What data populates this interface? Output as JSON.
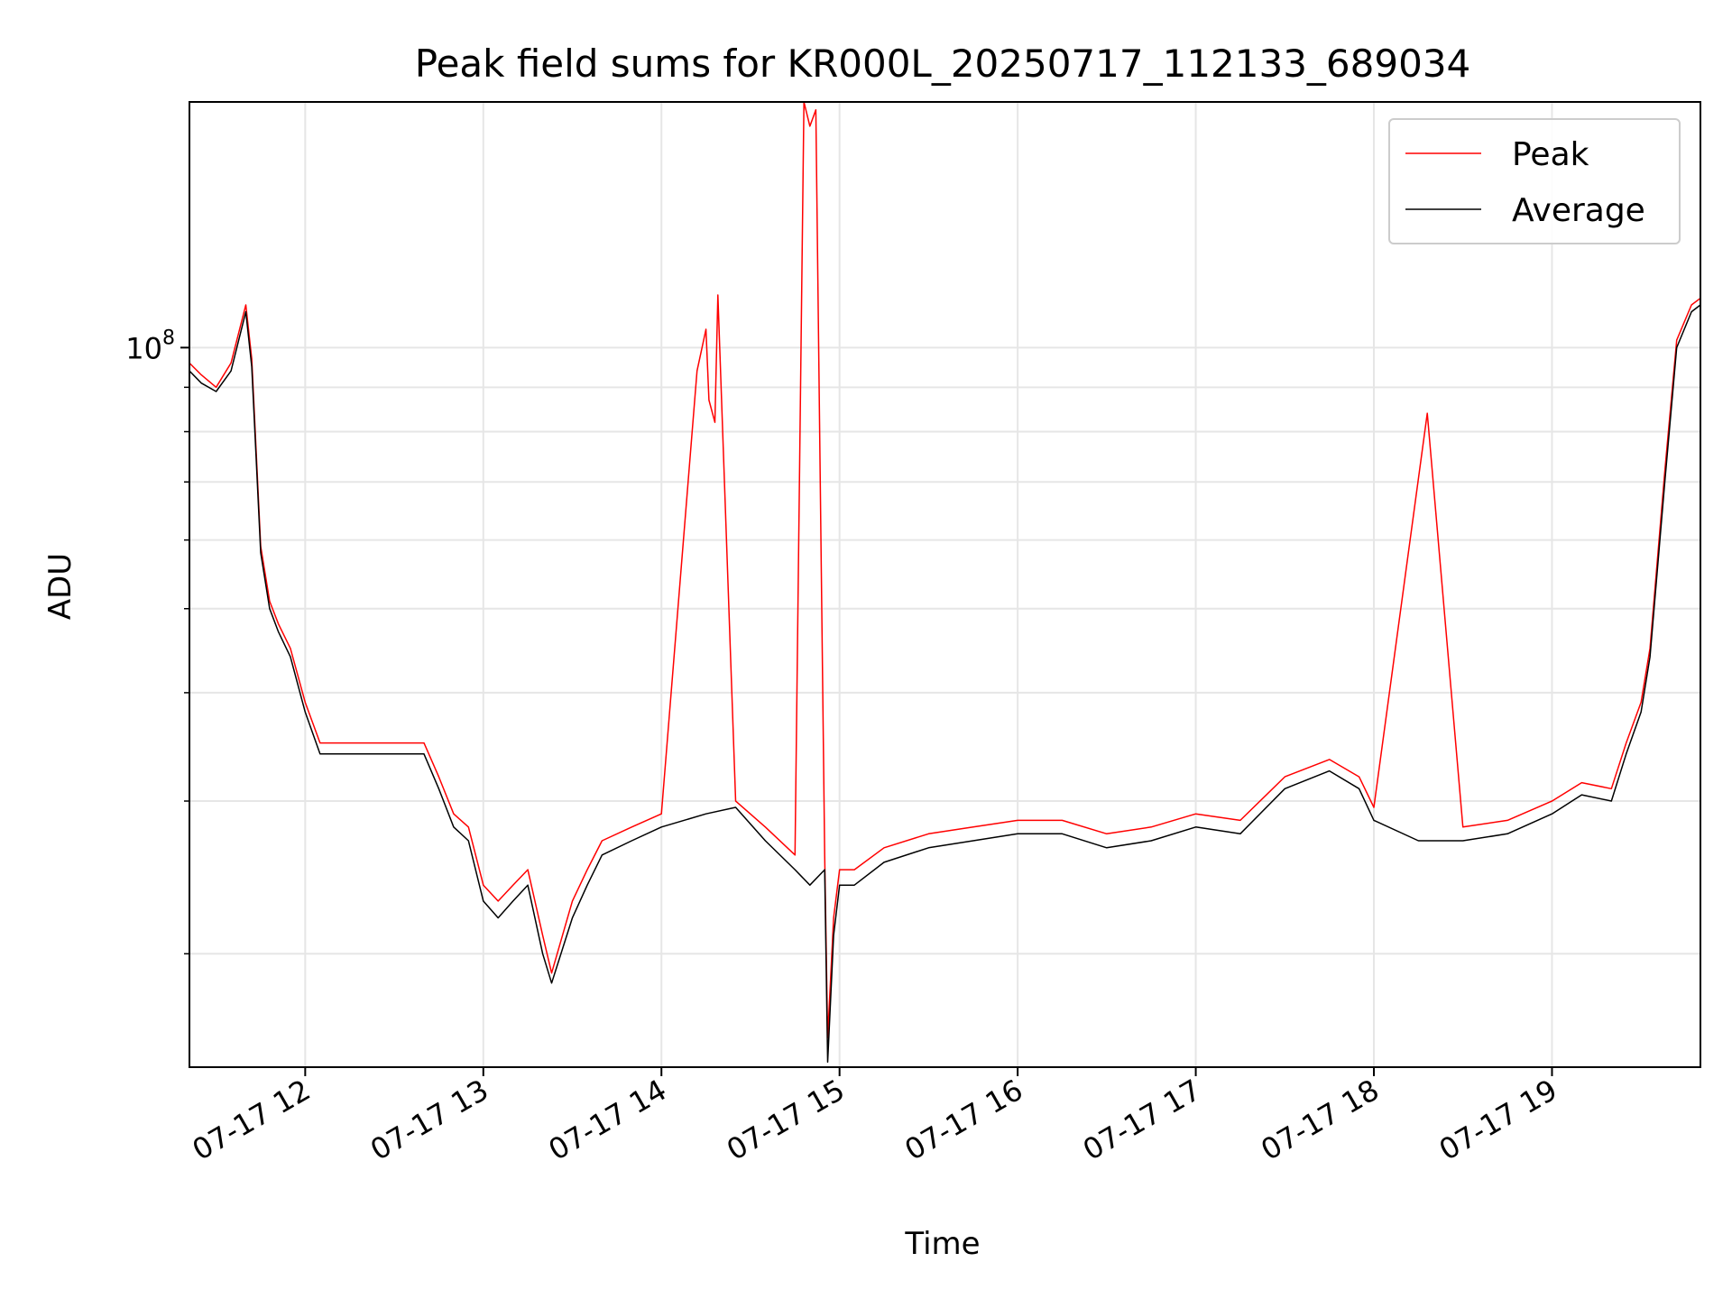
{
  "chart_data": {
    "type": "line",
    "title": "Peak field sums for KR000L_20250717_112133_689034",
    "xlabel": "Time",
    "ylabel": "ADU",
    "y_scale": "log",
    "ylim": [
      14800000,
      192000000
    ],
    "xlim": [
      "2025-07-17 11:21",
      "2025-07-17 19:50"
    ],
    "x_ticks": [
      "07-17 12",
      "07-17 13",
      "07-17 14",
      "07-17 15",
      "07-17 16",
      "07-17 17",
      "07-17 18",
      "07-17 19"
    ],
    "y_major_tick_labels": [
      {
        "base": "10",
        "exp": "8",
        "value": 100000000
      }
    ],
    "grid": true,
    "legend": {
      "position": "top-right",
      "entries": [
        "Peak",
        "Average"
      ]
    },
    "colors": {
      "Peak": "#ff0000",
      "Average": "#000000"
    },
    "series": [
      {
        "name": "Average",
        "x": [
          "07-17 11:21",
          "07-17 11:25",
          "07-17 11:30",
          "07-17 11:35",
          "07-17 11:40",
          "07-17 11:42",
          "07-17 11:45",
          "07-17 11:48",
          "07-17 11:51",
          "07-17 11:55",
          "07-17 12:00",
          "07-17 12:05",
          "07-17 12:15",
          "07-17 12:30",
          "07-17 12:40",
          "07-17 12:45",
          "07-17 12:50",
          "07-17 12:55",
          "07-17 13:00",
          "07-17 13:05",
          "07-17 13:10",
          "07-17 13:15",
          "07-17 13:20",
          "07-17 13:23",
          "07-17 13:30",
          "07-17 13:35",
          "07-17 13:40",
          "07-17 13:50",
          "07-17 14:00",
          "07-17 14:15",
          "07-17 14:25",
          "07-17 14:35",
          "07-17 14:45",
          "07-17 14:50",
          "07-17 14:55",
          "07-17 14:56",
          "07-17 14:58",
          "07-17 15:00",
          "07-17 15:05",
          "07-17 15:15",
          "07-17 15:30",
          "07-17 15:45",
          "07-17 16:00",
          "07-17 16:15",
          "07-17 16:30",
          "07-17 16:45",
          "07-17 17:00",
          "07-17 17:15",
          "07-17 17:30",
          "07-17 17:45",
          "07-17 17:55",
          "07-17 18:00",
          "07-17 18:15",
          "07-17 18:30",
          "07-17 18:45",
          "07-17 19:00",
          "07-17 19:10",
          "07-17 19:20",
          "07-17 19:25",
          "07-17 19:30",
          "07-17 19:33",
          "07-17 19:38",
          "07-17 19:42",
          "07-17 19:47",
          "07-17 19:50"
        ],
        "values": [
          94000000,
          91000000,
          89000000,
          94000000,
          110000000,
          95000000,
          58000000,
          50000000,
          47000000,
          44000000,
          38000000,
          34000000,
          34000000,
          34000000,
          34000000,
          31000000,
          28000000,
          27000000,
          23000000,
          22000000,
          23000000,
          24000000,
          20000000,
          18500000,
          22000000,
          24000000,
          26000000,
          27000000,
          28000000,
          29000000,
          29500000,
          27000000,
          25000000,
          24000000,
          25000000,
          15000000,
          21000000,
          24000000,
          24000000,
          25500000,
          26500000,
          27000000,
          27500000,
          27500000,
          26500000,
          27000000,
          28000000,
          27500000,
          31000000,
          32500000,
          31000000,
          28500000,
          27000000,
          27000000,
          27500000,
          29000000,
          30500000,
          30000000,
          34000000,
          38000000,
          44000000,
          70000000,
          100000000,
          110000000,
          112000000
        ]
      },
      {
        "name": "Peak",
        "x": [
          "07-17 11:21",
          "07-17 11:25",
          "07-17 11:30",
          "07-17 11:35",
          "07-17 11:40",
          "07-17 11:42",
          "07-17 11:45",
          "07-17 11:48",
          "07-17 11:51",
          "07-17 11:55",
          "07-17 12:00",
          "07-17 12:05",
          "07-17 12:15",
          "07-17 12:30",
          "07-17 12:40",
          "07-17 12:45",
          "07-17 12:50",
          "07-17 12:55",
          "07-17 13:00",
          "07-17 13:05",
          "07-17 13:10",
          "07-17 13:15",
          "07-17 13:20",
          "07-17 13:23",
          "07-17 13:30",
          "07-17 13:35",
          "07-17 13:40",
          "07-17 13:50",
          "07-17 14:00",
          "07-17 14:12",
          "07-17 14:15",
          "07-17 14:16",
          "07-17 14:18",
          "07-17 14:19",
          "07-17 14:25",
          "07-17 14:35",
          "07-17 14:45",
          "07-17 14:48",
          "07-17 14:50",
          "07-17 14:52",
          "07-17 14:55",
          "07-17 14:56",
          "07-17 14:58",
          "07-17 15:00",
          "07-17 15:05",
          "07-17 15:15",
          "07-17 15:30",
          "07-17 15:45",
          "07-17 16:00",
          "07-17 16:15",
          "07-17 16:30",
          "07-17 16:45",
          "07-17 17:00",
          "07-17 17:15",
          "07-17 17:30",
          "07-17 17:45",
          "07-17 17:55",
          "07-17 18:00",
          "07-17 18:18",
          "07-17 18:30",
          "07-17 18:45",
          "07-17 19:00",
          "07-17 19:10",
          "07-17 19:20",
          "07-17 19:25",
          "07-17 19:30",
          "07-17 19:33",
          "07-17 19:38",
          "07-17 19:42",
          "07-17 19:47",
          "07-17 19:50"
        ],
        "values": [
          96000000,
          93000000,
          90000000,
          96000000,
          112000000,
          97000000,
          59000000,
          51000000,
          48000000,
          45000000,
          39000000,
          35000000,
          35000000,
          35000000,
          35000000,
          32000000,
          29000000,
          28000000,
          24000000,
          23000000,
          24000000,
          25000000,
          21000000,
          19000000,
          23000000,
          25000000,
          27000000,
          28000000,
          29000000,
          94000000,
          105000000,
          87000000,
          82000000,
          115000000,
          30000000,
          28000000,
          26000000,
          192000000,
          180000000,
          188000000,
          26000000,
          16000000,
          22000000,
          25000000,
          25000000,
          26500000,
          27500000,
          28000000,
          28500000,
          28500000,
          27500000,
          28000000,
          29000000,
          28500000,
          32000000,
          33500000,
          32000000,
          29500000,
          84000000,
          28000000,
          28500000,
          30000000,
          31500000,
          31000000,
          35000000,
          39000000,
          45000000,
          72000000,
          102000000,
          112000000,
          114000000
        ]
      }
    ]
  }
}
